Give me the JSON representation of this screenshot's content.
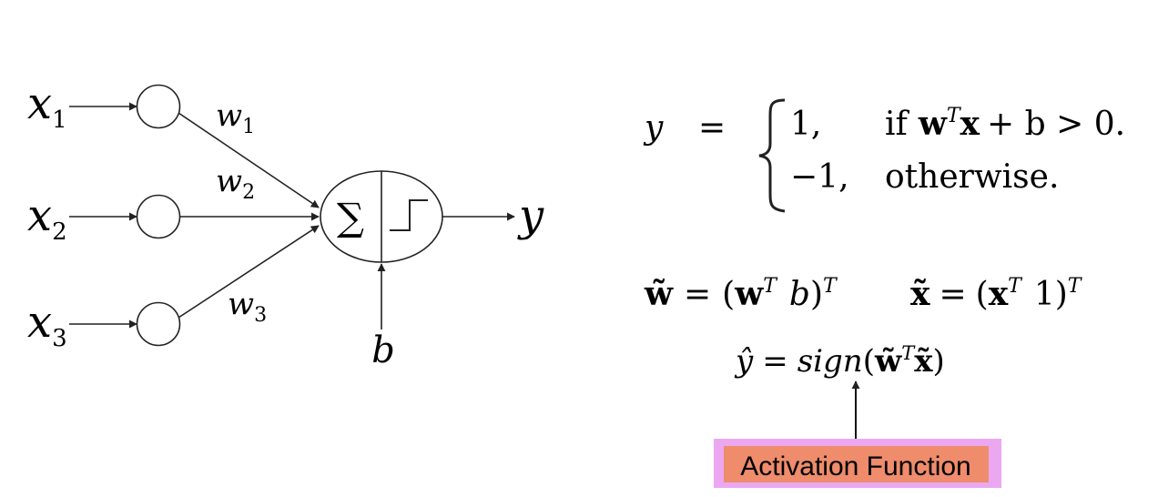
{
  "perceptron": {
    "inputs": [
      {
        "var": "x",
        "sub": "1"
      },
      {
        "var": "x",
        "sub": "2"
      },
      {
        "var": "x",
        "sub": "3"
      }
    ],
    "weights": [
      {
        "var": "w",
        "sub": "1"
      },
      {
        "var": "w",
        "sub": "2"
      },
      {
        "var": "w",
        "sub": "3"
      }
    ],
    "sum_symbol": "∑",
    "bias": "b",
    "output": "y"
  },
  "equations": {
    "piecewise": {
      "lhs": "y",
      "eq": "=",
      "case1_value": "1,",
      "case1_cond_if": "if",
      "case1_cond_bold_w": "w",
      "case1_cond_sup_T": "T",
      "case1_cond_bold_x": "x",
      "case1_cond_rest": "+ b > 0.",
      "case2_value": "−1,",
      "case2_cond": "otherwise."
    },
    "w_tilde": {
      "lhs": "w̃",
      "eq": "=",
      "open": "(",
      "bold_w": "w",
      "sup_T": "T",
      "b": "b",
      "close": ")",
      "outer_T": "T"
    },
    "x_tilde": {
      "lhs": "x̃",
      "eq": "=",
      "open": "(",
      "bold_x": "x",
      "sup_T": "T",
      "one": "1",
      "close": ")",
      "outer_T": "T"
    },
    "yhat": {
      "lhs": "ŷ",
      "eq": "=",
      "fn": "sign",
      "open": "(",
      "w": "w̃",
      "sup_T": "T",
      "x": "x̃",
      "close": ")"
    }
  },
  "activation_label": "Activation Function",
  "colors": {
    "label_bg": "#EE8C6C",
    "label_border": "#EBA8F0",
    "stroke": "#222222"
  }
}
